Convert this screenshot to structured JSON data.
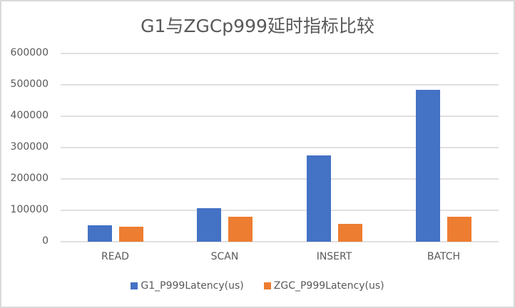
{
  "chart_data": {
    "type": "bar",
    "title": "G1与ZGCp999延时指标比较",
    "categories": [
      "READ",
      "SCAN",
      "INSERT",
      "BATCH"
    ],
    "series": [
      {
        "name": "G1_P999Latency(us)",
        "color": "#4472c4",
        "values": [
          52000,
          107000,
          274000,
          484000
        ]
      },
      {
        "name": "ZGC_P999Latency(us)",
        "color": "#ed7d31",
        "values": [
          47700,
          79500,
          56000,
          79500
        ]
      }
    ],
    "xlabel": "",
    "ylabel": "",
    "ylim": [
      0,
      600000
    ],
    "yticks": [
      "0",
      "100000",
      "200000",
      "300000",
      "400000",
      "500000",
      "600000"
    ],
    "grid": true,
    "legend_position": "bottom"
  }
}
